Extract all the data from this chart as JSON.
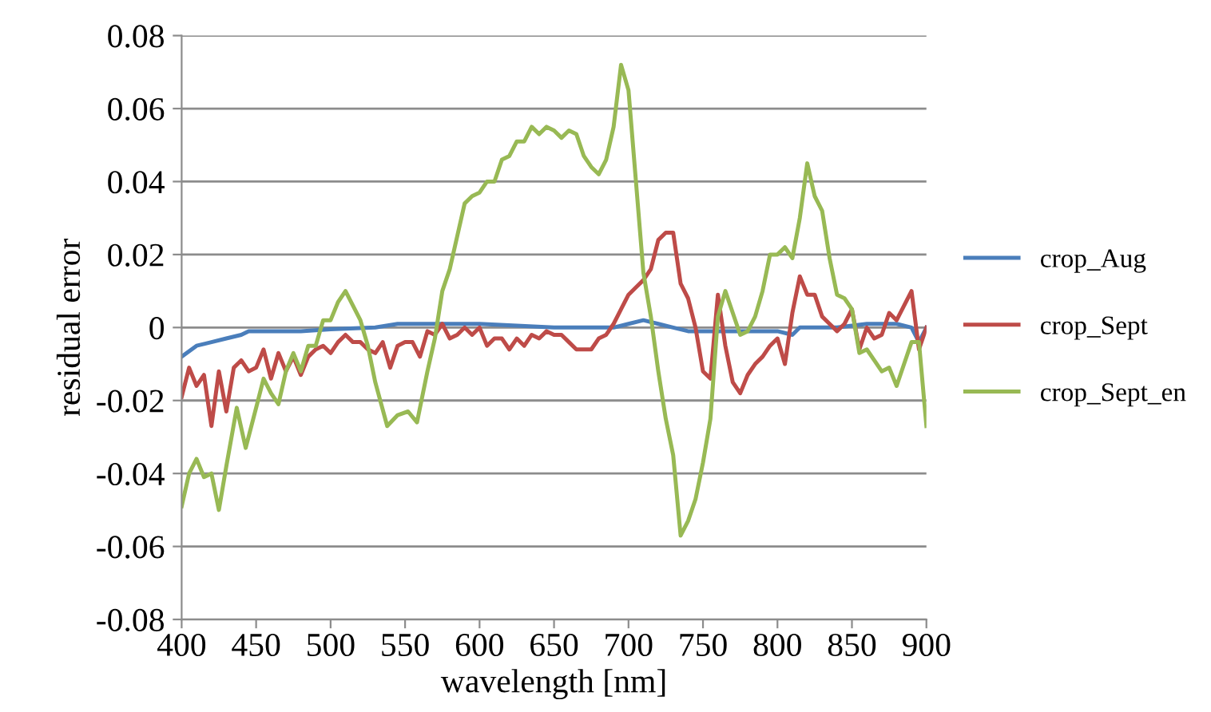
{
  "chart_data": {
    "type": "line",
    "xlabel": "wavelength [nm]",
    "ylabel": "residual error",
    "xlim": [
      400,
      900
    ],
    "xticks": [
      400,
      450,
      500,
      550,
      600,
      650,
      700,
      750,
      800,
      850,
      900
    ],
    "ylim": [
      -0.08,
      0.08
    ],
    "yticks": [
      -0.08,
      -0.06,
      -0.04,
      -0.02,
      0,
      0.02,
      0.04,
      0.06,
      0.08
    ],
    "grid": "y",
    "legend": "right",
    "marker": "none",
    "line_style": "solid",
    "series": [
      {
        "name": "crop_Aug",
        "color": "#4a7ebb",
        "x": [
          400,
          410,
          420,
          430,
          440,
          445,
          450,
          470,
          480,
          500,
          530,
          545,
          560,
          600,
          650,
          690,
          700,
          710,
          720,
          730,
          740,
          760,
          800,
          810,
          815,
          840,
          860,
          880,
          890,
          895,
          900
        ],
        "values": [
          -0.008,
          -0.005,
          -0.004,
          -0.003,
          -0.002,
          -0.001,
          -0.001,
          -0.001,
          -0.001,
          -0.0005,
          0.0,
          0.001,
          0.001,
          0.001,
          0.0,
          0.0,
          0.001,
          0.002,
          0.001,
          0.0,
          -0.001,
          -0.001,
          -0.001,
          -0.002,
          0.0,
          0.0,
          0.001,
          0.001,
          0.0,
          -0.004,
          0.0
        ]
      },
      {
        "name": "crop_Sept",
        "color": "#be4b48",
        "x": [
          400,
          405,
          410,
          415,
          420,
          425,
          430,
          435,
          440,
          445,
          450,
          455,
          460,
          465,
          470,
          475,
          480,
          485,
          490,
          495,
          500,
          505,
          510,
          515,
          520,
          525,
          530,
          535,
          540,
          545,
          550,
          555,
          560,
          565,
          570,
          575,
          580,
          585,
          590,
          595,
          600,
          605,
          610,
          615,
          620,
          625,
          630,
          635,
          640,
          645,
          650,
          655,
          660,
          665,
          670,
          675,
          680,
          685,
          690,
          695,
          700,
          705,
          710,
          715,
          720,
          725,
          730,
          735,
          740,
          745,
          750,
          755,
          760,
          765,
          770,
          775,
          780,
          785,
          790,
          795,
          800,
          805,
          810,
          815,
          820,
          825,
          830,
          835,
          840,
          845,
          850,
          855,
          860,
          865,
          870,
          875,
          880,
          885,
          890,
          895,
          900
        ],
        "values": [
          -0.019,
          -0.011,
          -0.016,
          -0.013,
          -0.027,
          -0.012,
          -0.023,
          -0.011,
          -0.009,
          -0.012,
          -0.011,
          -0.006,
          -0.014,
          -0.007,
          -0.012,
          -0.008,
          -0.013,
          -0.008,
          -0.006,
          -0.005,
          -0.007,
          -0.004,
          -0.002,
          -0.004,
          -0.004,
          -0.006,
          -0.007,
          -0.004,
          -0.011,
          -0.005,
          -0.004,
          -0.004,
          -0.008,
          -0.001,
          -0.002,
          0.001,
          -0.003,
          -0.002,
          0.0,
          -0.002,
          0.0,
          -0.005,
          -0.003,
          -0.003,
          -0.006,
          -0.003,
          -0.005,
          -0.002,
          -0.003,
          -0.001,
          -0.002,
          -0.002,
          -0.004,
          -0.006,
          -0.006,
          -0.006,
          -0.003,
          -0.002,
          0.001,
          0.005,
          0.009,
          0.011,
          0.013,
          0.016,
          0.024,
          0.026,
          0.026,
          0.012,
          0.008,
          0.0,
          -0.012,
          -0.014,
          0.009,
          -0.005,
          -0.015,
          -0.018,
          -0.013,
          -0.01,
          -0.008,
          -0.005,
          -0.003,
          -0.01,
          0.004,
          0.014,
          0.009,
          0.009,
          0.003,
          0.001,
          -0.001,
          0.001,
          0.005,
          -0.006,
          0.0,
          -0.003,
          -0.002,
          0.004,
          0.002,
          0.006,
          0.01,
          -0.006,
          0.0
        ]
      },
      {
        "name": "crop_Sept_en",
        "color": "#98b954",
        "x": [
          400,
          405,
          410,
          415,
          420,
          425,
          430,
          437,
          443,
          450,
          455,
          460,
          465,
          470,
          475,
          480,
          485,
          490,
          495,
          500,
          505,
          510,
          515,
          520,
          525,
          530,
          538,
          545,
          552,
          558,
          565,
          570,
          575,
          580,
          585,
          590,
          595,
          600,
          605,
          610,
          615,
          620,
          625,
          630,
          635,
          640,
          645,
          650,
          655,
          660,
          665,
          670,
          675,
          680,
          685,
          690,
          695,
          700,
          705,
          710,
          715,
          720,
          725,
          730,
          735,
          740,
          745,
          750,
          755,
          760,
          765,
          770,
          775,
          780,
          785,
          790,
          795,
          800,
          805,
          810,
          815,
          820,
          825,
          830,
          835,
          840,
          845,
          850,
          855,
          860,
          865,
          870,
          875,
          880,
          885,
          890,
          895,
          900
        ],
        "values": [
          -0.049,
          -0.04,
          -0.036,
          -0.041,
          -0.04,
          -0.05,
          -0.038,
          -0.022,
          -0.033,
          -0.022,
          -0.014,
          -0.018,
          -0.021,
          -0.012,
          -0.007,
          -0.012,
          -0.005,
          -0.005,
          0.002,
          0.002,
          0.007,
          0.01,
          0.006,
          0.002,
          -0.005,
          -0.015,
          -0.027,
          -0.024,
          -0.023,
          -0.026,
          -0.012,
          -0.003,
          0.01,
          0.016,
          0.025,
          0.034,
          0.036,
          0.037,
          0.04,
          0.04,
          0.046,
          0.047,
          0.051,
          0.051,
          0.055,
          0.053,
          0.055,
          0.054,
          0.052,
          0.054,
          0.053,
          0.047,
          0.044,
          0.042,
          0.046,
          0.055,
          0.072,
          0.065,
          0.04,
          0.015,
          0.003,
          -0.012,
          -0.025,
          -0.035,
          -0.057,
          -0.053,
          -0.047,
          -0.037,
          -0.025,
          0.003,
          0.01,
          0.004,
          -0.002,
          -0.001,
          0.003,
          0.01,
          0.02,
          0.02,
          0.022,
          0.019,
          0.03,
          0.045,
          0.036,
          0.032,
          0.019,
          0.009,
          0.008,
          0.005,
          -0.007,
          -0.006,
          -0.009,
          -0.012,
          -0.011,
          -0.016,
          -0.01,
          -0.004,
          -0.004,
          -0.027
        ]
      }
    ]
  }
}
